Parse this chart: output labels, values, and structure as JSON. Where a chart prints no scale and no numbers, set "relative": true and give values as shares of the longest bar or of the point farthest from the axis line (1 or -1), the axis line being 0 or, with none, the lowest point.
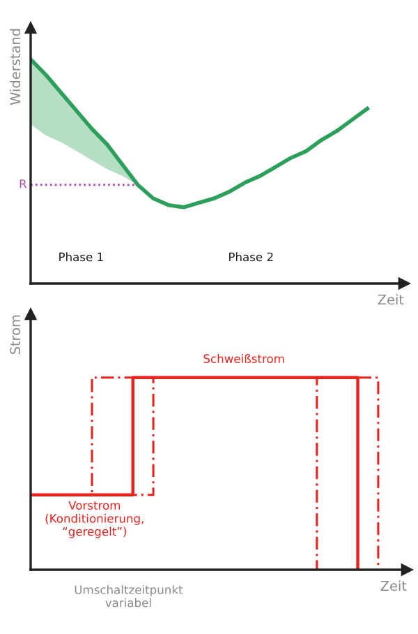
{
  "chart_data": [
    {
      "type": "line",
      "relative": true,
      "xlabel": "Zeit",
      "ylabel": "Widerstand",
      "categories": [
        null,
        null,
        null,
        null,
        null,
        null,
        null,
        null,
        null,
        null,
        null,
        null,
        null,
        null,
        null,
        null,
        null,
        null,
        null,
        null,
        null,
        null,
        null,
        null,
        null
      ],
      "series": [
        {
          "color": "#2ca05a",
          "values": [
            1,
            0.93,
            0.85,
            0.77,
            0.69,
            0.62,
            0.53,
            0.44,
            0.38,
            0.35,
            0.34,
            0.36,
            0.38,
            0.41,
            0.45,
            0.48,
            0.52,
            0.56,
            0.59,
            0.64,
            0.68,
            0.73,
            0.78,
            null,
            null
          ],
          "lower": [
            0.71,
            0.66,
            0.63,
            0.59,
            0.55,
            0.51,
            0.48,
            0.44,
            null,
            null,
            null,
            null,
            null,
            null,
            null,
            null,
            null,
            null,
            null,
            null,
            null,
            null,
            null,
            null,
            null
          ],
          "upper": [
            1,
            0.93,
            0.85,
            0.77,
            0.69,
            0.62,
            0.53,
            0.44,
            null,
            null,
            null,
            null,
            null,
            null,
            null,
            null,
            null,
            null,
            null,
            null,
            null,
            null,
            null,
            null,
            null
          ]
        }
      ],
      "ref_lines": [
        {
          "axis": "y",
          "value": 0.44,
          "label": "R",
          "color": "#b04fb0",
          "line_style": "dotted"
        }
      ],
      "annotations": [
        "Phase 1",
        "Phase 2"
      ]
    },
    {
      "type": "step",
      "relative": true,
      "xlabel": "Zeit",
      "ylabel": "Strom",
      "categories": [
        null,
        null,
        null,
        null,
        null,
        null,
        null,
        null,
        null,
        null,
        null,
        null,
        null,
        null,
        null,
        null,
        null,
        null,
        null
      ],
      "series": [
        {
          "color": "#e8231e",
          "line_style": "solid",
          "values": [
            0.39,
            0.39,
            0.39,
            0.39,
            0.39,
            1,
            1,
            1,
            1,
            1,
            1,
            1,
            1,
            1,
            1,
            1,
            0,
            null,
            null
          ]
        },
        {
          "color": "#e8231e",
          "line_style": "dashed",
          "values": [
            0.39,
            0.39,
            0.39,
            1,
            1,
            1,
            1,
            1,
            1,
            1,
            1,
            1,
            1,
            1,
            1,
            1,
            1,
            0,
            null
          ]
        },
        {
          "color": "#e8231e",
          "line_style": "dashed",
          "values": [
            0.39,
            0.39,
            0.39,
            0.39,
            0.39,
            0.39,
            1,
            1,
            1,
            1,
            1,
            1,
            1,
            1,
            0,
            null,
            null,
            null,
            null
          ]
        }
      ],
      "annotations": [
        "Schweißstrom",
        "Vorstrom\n(Konditionierung,\n“geregelt”)",
        "Umschaltzeitpunkt\nvariabel"
      ]
    }
  ]
}
